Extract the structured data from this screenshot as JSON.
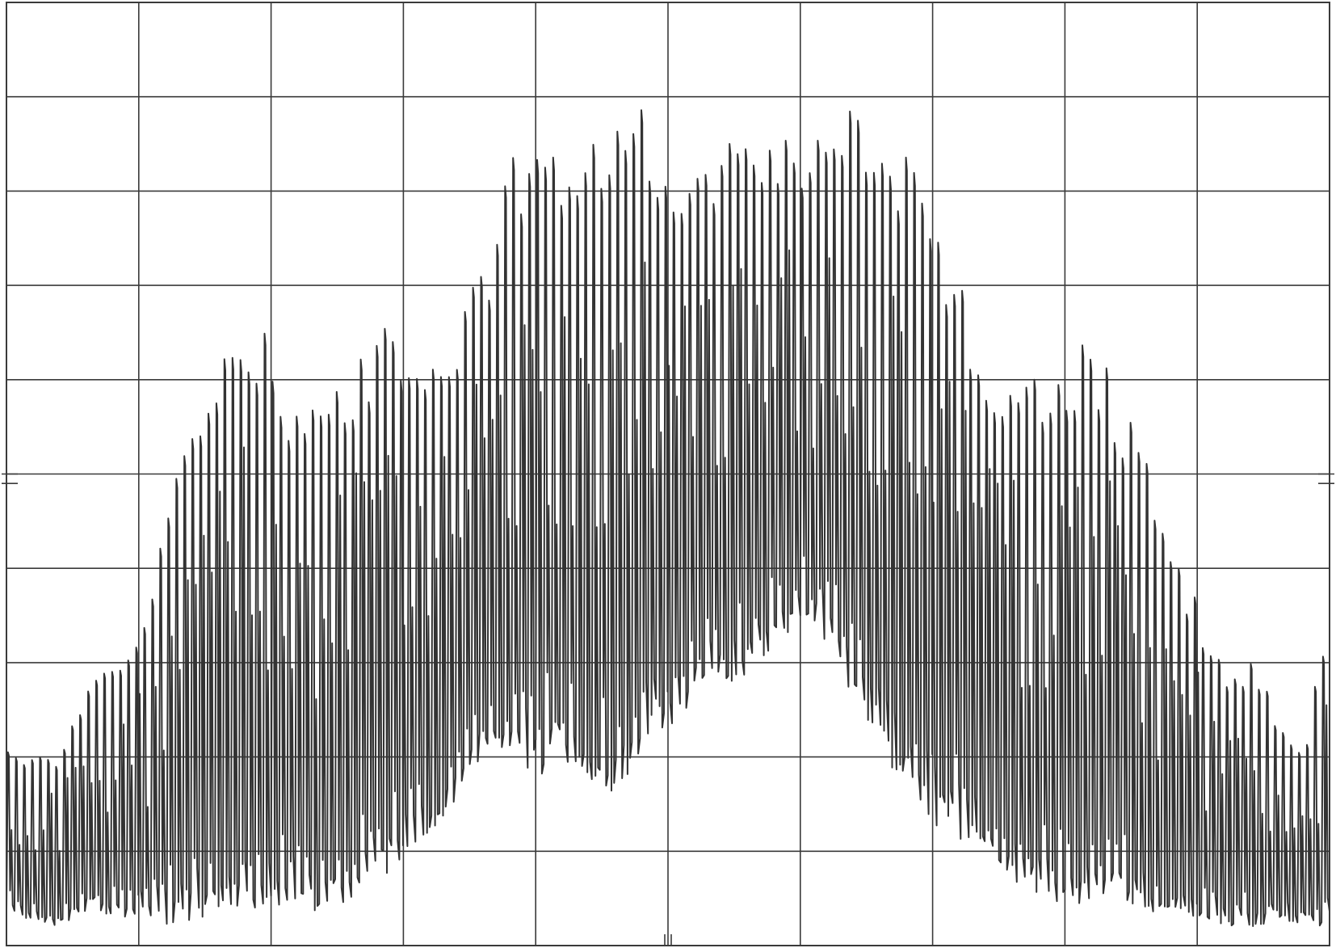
{
  "chart_data": {
    "type": "line",
    "title": "",
    "xlabel": "",
    "ylabel": "",
    "xlim": [
      0,
      10
    ],
    "ylim": [
      0,
      10
    ],
    "grid": true,
    "legend": "none",
    "colors": {
      "line": "#333333",
      "grid": "#3a3a3a",
      "background": "#ffffff"
    },
    "series": [
      {
        "values_note_free": true,
        "x": [
          0.0,
          0.2,
          0.4,
          0.6,
          0.8,
          1.0,
          1.2,
          1.4,
          1.6,
          1.8,
          2.0,
          2.2,
          2.4,
          2.6,
          2.8,
          3.0,
          3.2,
          3.4,
          3.6,
          3.8,
          4.0,
          4.2,
          4.4,
          4.6,
          4.8,
          5.0,
          5.2,
          5.4,
          5.6,
          5.8,
          6.0,
          6.2,
          6.4,
          6.6,
          6.8,
          7.0,
          7.2,
          7.4,
          7.6,
          7.8,
          8.0,
          8.2,
          8.4,
          8.6,
          8.8,
          9.0,
          9.2,
          9.4,
          9.6,
          9.8,
          10.0
        ],
        "upper": [
          2.2,
          2.0,
          2.1,
          2.9,
          3.0,
          3.4,
          4.8,
          5.6,
          6.3,
          6.7,
          6.5,
          5.7,
          6.0,
          6.2,
          6.6,
          6.6,
          6.3,
          6.6,
          7.3,
          8.3,
          8.9,
          8.6,
          8.7,
          8.8,
          8.9,
          8.2,
          8.4,
          8.6,
          8.6,
          8.6,
          8.5,
          8.7,
          8.9,
          8.8,
          8.5,
          8.0,
          7.0,
          6.2,
          6.3,
          6.1,
          6.3,
          6.5,
          5.8,
          5.2,
          4.3,
          3.6,
          2.9,
          3.0,
          2.5,
          2.2,
          3.8
        ],
        "lower": [
          0.3,
          0.2,
          0.2,
          0.4,
          0.3,
          0.3,
          0.2,
          0.3,
          0.3,
          0.4,
          0.4,
          0.4,
          0.3,
          0.5,
          0.7,
          0.9,
          1.2,
          1.6,
          2.0,
          1.9,
          1.8,
          2.0,
          1.7,
          1.6,
          2.2,
          2.3,
          2.6,
          2.8,
          2.8,
          3.2,
          3.5,
          3.2,
          2.5,
          2.0,
          1.6,
          1.3,
          1.1,
          0.9,
          0.6,
          0.5,
          0.4,
          0.4,
          0.5,
          0.3,
          0.3,
          0.3,
          0.2,
          0.2,
          0.3,
          0.2,
          0.2
        ]
      }
    ]
  }
}
